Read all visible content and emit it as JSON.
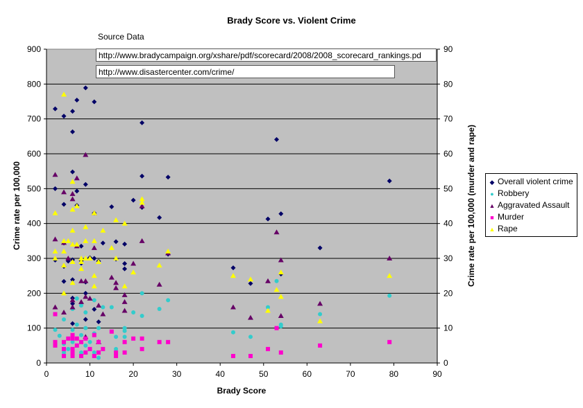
{
  "chart_data": {
    "type": "scatter",
    "title": "Brady Score vs. Violent Crime",
    "xlabel": "Brady Score",
    "ylabel": "Crime rate per 100,000",
    "y2label": "Crime rate per 100,000 (murder and rape)",
    "xlim": [
      0,
      90
    ],
    "ylim": [
      0,
      900
    ],
    "y2lim": [
      0,
      90
    ],
    "xticks": [
      0,
      10,
      20,
      30,
      40,
      50,
      60,
      70,
      80,
      90
    ],
    "yticks": [
      0,
      100,
      200,
      300,
      400,
      500,
      600,
      700,
      800,
      900
    ],
    "y2ticks": [
      0,
      10,
      20,
      30,
      40,
      50,
      60,
      70,
      80,
      90
    ],
    "grid": "horizontal",
    "legend_position": "right",
    "plot_background": "#c0c0c0",
    "series": [
      {
        "name": "Overall violent crime",
        "axis": "left",
        "marker": "diamond",
        "color": "#000066",
        "points": [
          [
            2,
            729
          ],
          [
            2,
            500
          ],
          [
            2,
            295
          ],
          [
            4,
            708
          ],
          [
            4,
            455
          ],
          [
            4,
            344
          ],
          [
            4,
            277
          ],
          [
            4,
            234
          ],
          [
            5,
            292
          ],
          [
            6,
            722
          ],
          [
            6,
            663
          ],
          [
            6,
            548
          ],
          [
            6,
            296
          ],
          [
            6,
            239
          ],
          [
            6,
            186
          ],
          [
            6,
            170
          ],
          [
            6,
            113
          ],
          [
            7,
            754
          ],
          [
            7,
            493
          ],
          [
            7,
            452
          ],
          [
            8,
            335
          ],
          [
            8,
            293
          ],
          [
            8,
            286
          ],
          [
            9,
            789
          ],
          [
            9,
            512
          ],
          [
            9,
            232
          ],
          [
            9,
            200
          ],
          [
            9,
            125
          ],
          [
            10,
            302
          ],
          [
            11,
            749
          ],
          [
            11,
            430
          ],
          [
            11,
            300
          ],
          [
            11,
            154
          ],
          [
            12,
            292
          ],
          [
            12,
            118
          ],
          [
            13,
            344
          ],
          [
            15,
            448
          ],
          [
            16,
            348
          ],
          [
            16,
            298
          ],
          [
            18,
            341
          ],
          [
            18,
            285
          ],
          [
            18,
            270
          ],
          [
            20,
            467
          ],
          [
            22,
            689
          ],
          [
            22,
            536
          ],
          [
            22,
            446
          ],
          [
            26,
            417
          ],
          [
            28,
            533
          ],
          [
            28,
            312
          ],
          [
            43,
            273
          ],
          [
            47,
            228
          ],
          [
            51,
            413
          ],
          [
            53,
            641
          ],
          [
            54,
            428
          ],
          [
            54,
            255
          ],
          [
            63,
            330
          ],
          [
            79,
            522
          ]
        ]
      },
      {
        "name": "Robbery",
        "axis": "left",
        "marker": "circle",
        "color": "#33cccc",
        "points": [
          [
            2,
            95
          ],
          [
            3,
            78
          ],
          [
            4,
            125
          ],
          [
            4,
            55
          ],
          [
            4,
            30
          ],
          [
            5,
            40
          ],
          [
            6,
            155
          ],
          [
            6,
            95
          ],
          [
            6,
            60
          ],
          [
            6,
            22
          ],
          [
            7,
            185
          ],
          [
            7,
            110
          ],
          [
            8,
            165
          ],
          [
            8,
            80
          ],
          [
            8,
            30
          ],
          [
            9,
            145
          ],
          [
            9,
            100
          ],
          [
            9,
            50
          ],
          [
            10,
            60
          ],
          [
            11,
            180
          ],
          [
            11,
            85
          ],
          [
            11,
            30
          ],
          [
            12,
            100
          ],
          [
            12,
            15
          ],
          [
            13,
            160
          ],
          [
            15,
            160
          ],
          [
            16,
            75
          ],
          [
            16,
            40
          ],
          [
            18,
            100
          ],
          [
            18,
            92
          ],
          [
            18,
            75
          ],
          [
            20,
            145
          ],
          [
            22,
            200
          ],
          [
            22,
            135
          ],
          [
            26,
            155
          ],
          [
            28,
            180
          ],
          [
            43,
            88
          ],
          [
            47,
            75
          ],
          [
            51,
            160
          ],
          [
            53,
            235
          ],
          [
            54,
            110
          ],
          [
            54,
            105
          ],
          [
            63,
            140
          ],
          [
            79,
            193
          ]
        ]
      },
      {
        "name": "Aggravated Assault",
        "axis": "left",
        "marker": "triangle",
        "color": "#660066",
        "points": [
          [
            2,
            540
          ],
          [
            2,
            355
          ],
          [
            2,
            160
          ],
          [
            4,
            490
          ],
          [
            4,
            345
          ],
          [
            4,
            145
          ],
          [
            5,
            300
          ],
          [
            6,
            485
          ],
          [
            6,
            470
          ],
          [
            6,
            180
          ],
          [
            6,
            160
          ],
          [
            7,
            530
          ],
          [
            7,
            335
          ],
          [
            8,
            235
          ],
          [
            8,
            175
          ],
          [
            9,
            597
          ],
          [
            9,
            235
          ],
          [
            9,
            190
          ],
          [
            9,
            75
          ],
          [
            10,
            185
          ],
          [
            11,
            430
          ],
          [
            11,
            330
          ],
          [
            12,
            165
          ],
          [
            12,
            60
          ],
          [
            13,
            140
          ],
          [
            15,
            245
          ],
          [
            16,
            230
          ],
          [
            16,
            215
          ],
          [
            18,
            195
          ],
          [
            18,
            175
          ],
          [
            18,
            150
          ],
          [
            20,
            285
          ],
          [
            22,
            450
          ],
          [
            22,
            350
          ],
          [
            26,
            225
          ],
          [
            28,
            315
          ],
          [
            43,
            160
          ],
          [
            47,
            130
          ],
          [
            51,
            235
          ],
          [
            53,
            375
          ],
          [
            54,
            295
          ],
          [
            54,
            135
          ],
          [
            63,
            170
          ],
          [
            79,
            300
          ]
        ]
      },
      {
        "name": "Murder",
        "axis": "right",
        "marker": "square",
        "color": "#ff00cc",
        "points": [
          [
            2,
            14
          ],
          [
            2,
            6
          ],
          [
            2,
            5
          ],
          [
            4,
            6
          ],
          [
            4,
            4
          ],
          [
            4,
            2
          ],
          [
            5,
            7
          ],
          [
            6,
            8
          ],
          [
            6,
            7
          ],
          [
            6,
            4
          ],
          [
            6,
            3
          ],
          [
            6,
            2
          ],
          [
            7,
            7
          ],
          [
            7,
            5
          ],
          [
            8,
            6
          ],
          [
            8,
            2
          ],
          [
            9,
            7
          ],
          [
            9,
            3
          ],
          [
            10,
            4
          ],
          [
            11,
            8
          ],
          [
            11,
            2
          ],
          [
            12,
            6
          ],
          [
            12,
            3
          ],
          [
            13,
            4
          ],
          [
            15,
            9
          ],
          [
            16,
            3
          ],
          [
            16,
            2
          ],
          [
            18,
            6
          ],
          [
            18,
            3
          ],
          [
            20,
            7
          ],
          [
            22,
            7
          ],
          [
            22,
            4
          ],
          [
            26,
            6
          ],
          [
            28,
            6
          ],
          [
            43,
            2
          ],
          [
            47,
            2
          ],
          [
            51,
            4
          ],
          [
            53,
            10
          ],
          [
            54,
            3
          ],
          [
            63,
            5
          ],
          [
            79,
            6
          ]
        ]
      },
      {
        "name": "Rape",
        "axis": "right",
        "marker": "triangle",
        "color": "#ffff00",
        "points": [
          [
            2,
            43
          ],
          [
            2,
            32
          ],
          [
            2,
            30
          ],
          [
            4,
            77
          ],
          [
            4,
            35
          ],
          [
            4,
            32
          ],
          [
            4,
            28
          ],
          [
            4,
            20
          ],
          [
            5,
            35
          ],
          [
            6,
            52
          ],
          [
            6,
            44
          ],
          [
            6,
            38
          ],
          [
            6,
            34
          ],
          [
            6,
            29
          ],
          [
            6,
            23
          ],
          [
            7,
            45
          ],
          [
            7,
            34
          ],
          [
            8,
            30
          ],
          [
            8,
            29
          ],
          [
            8,
            27
          ],
          [
            9,
            39
          ],
          [
            9,
            35
          ],
          [
            9,
            30
          ],
          [
            10,
            30
          ],
          [
            11,
            43
          ],
          [
            11,
            35
          ],
          [
            11,
            25
          ],
          [
            11,
            22
          ],
          [
            12,
            29
          ],
          [
            13,
            38
          ],
          [
            15,
            33
          ],
          [
            16,
            41
          ],
          [
            16,
            30
          ],
          [
            18,
            40
          ],
          [
            18,
            22
          ],
          [
            20,
            26
          ],
          [
            22,
            47
          ],
          [
            22,
            46
          ],
          [
            26,
            28
          ],
          [
            28,
            32
          ],
          [
            43,
            25
          ],
          [
            47,
            24
          ],
          [
            51,
            15
          ],
          [
            53,
            21
          ],
          [
            54,
            26
          ],
          [
            54,
            19
          ],
          [
            63,
            12
          ],
          [
            79,
            25
          ]
        ]
      }
    ],
    "annotations": [
      "Source Data",
      "http://www.bradycampaign.org/xshare/pdf/scorecard/2008/2008_scorecard_rankings.pd",
      "http://www.disastercenter.com/crime/"
    ]
  },
  "source": {
    "label": "Source Data",
    "url1": "http://www.bradycampaign.org/xshare/pdf/scorecard/2008/2008_scorecard_rankings.pd",
    "url2": "http://www.disastercenter.com/crime/"
  },
  "legend": {
    "items": [
      {
        "label": "Overall violent crime",
        "glyph": "◆",
        "color": "#000066"
      },
      {
        "label": "Robbery",
        "glyph": "●",
        "color": "#33cccc"
      },
      {
        "label": "Aggravated Assault",
        "glyph": "▲",
        "color": "#660066"
      },
      {
        "label": "Murder",
        "glyph": "■",
        "color": "#ff00cc"
      },
      {
        "label": "Rape",
        "glyph": "▲",
        "color": "#ffff00"
      }
    ]
  }
}
